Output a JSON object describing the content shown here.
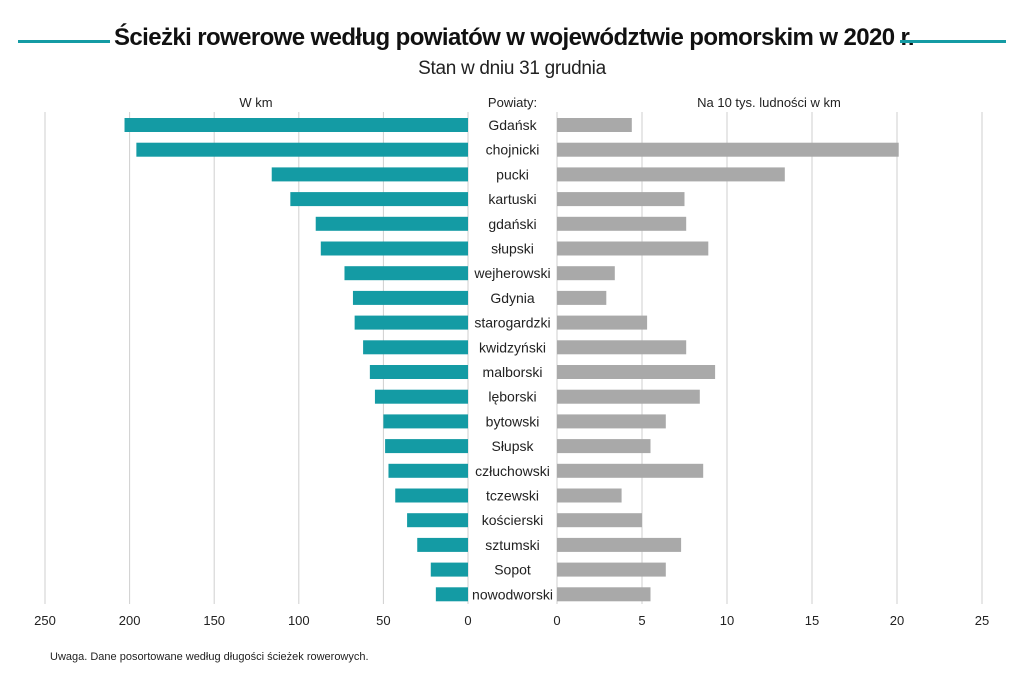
{
  "title": "Ścieżki rowerowe według powiatów w województwie pomorskim w 2020 r.",
  "subtitle": "Stan w dniu 31 grudnia",
  "note": "Uwaga. Dane posortowane według długości ścieżek rowerowych.",
  "colors": {
    "accent": "#149ba4",
    "left_bars": "#149ba4",
    "right_bars": "#a9a9a9",
    "grid": "#cfcfcf"
  },
  "chart_data": {
    "type": "bar",
    "orientation": "horizontal",
    "layout": "back-to-back",
    "category_header": "Powiaty:",
    "categories": [
      "Gdańsk",
      "chojnicki",
      "pucki",
      "kartuski",
      "gdański",
      "słupski",
      "wejherowski",
      "Gdynia",
      "starogardzki",
      "kwidzyński",
      "malborski",
      "lęborski",
      "bytowski",
      "Słupsk",
      "człuchowski",
      "tczewski",
      "kościerski",
      "sztumski",
      "Sopot",
      "nowodworski"
    ],
    "series": [
      {
        "name": "W km",
        "values": [
          203,
          196,
          116,
          105,
          90,
          87,
          73,
          68,
          67,
          62,
          58,
          55,
          50,
          49,
          47,
          43,
          36,
          30,
          22,
          19
        ],
        "xlim": [
          0,
          250
        ],
        "ticks": [
          250,
          200,
          150,
          100,
          50,
          0
        ],
        "direction": "leftward"
      },
      {
        "name": "Na 10 tys. ludności w km",
        "values": [
          4.4,
          20.1,
          13.4,
          7.5,
          7.6,
          8.9,
          3.4,
          2.9,
          5.3,
          7.6,
          9.3,
          8.4,
          6.4,
          5.5,
          8.6,
          3.8,
          5.0,
          7.3,
          6.4,
          5.5
        ],
        "xlim": [
          0,
          25
        ],
        "ticks": [
          0,
          5,
          10,
          15,
          20,
          25
        ],
        "direction": "rightward"
      }
    ],
    "grid": true
  }
}
